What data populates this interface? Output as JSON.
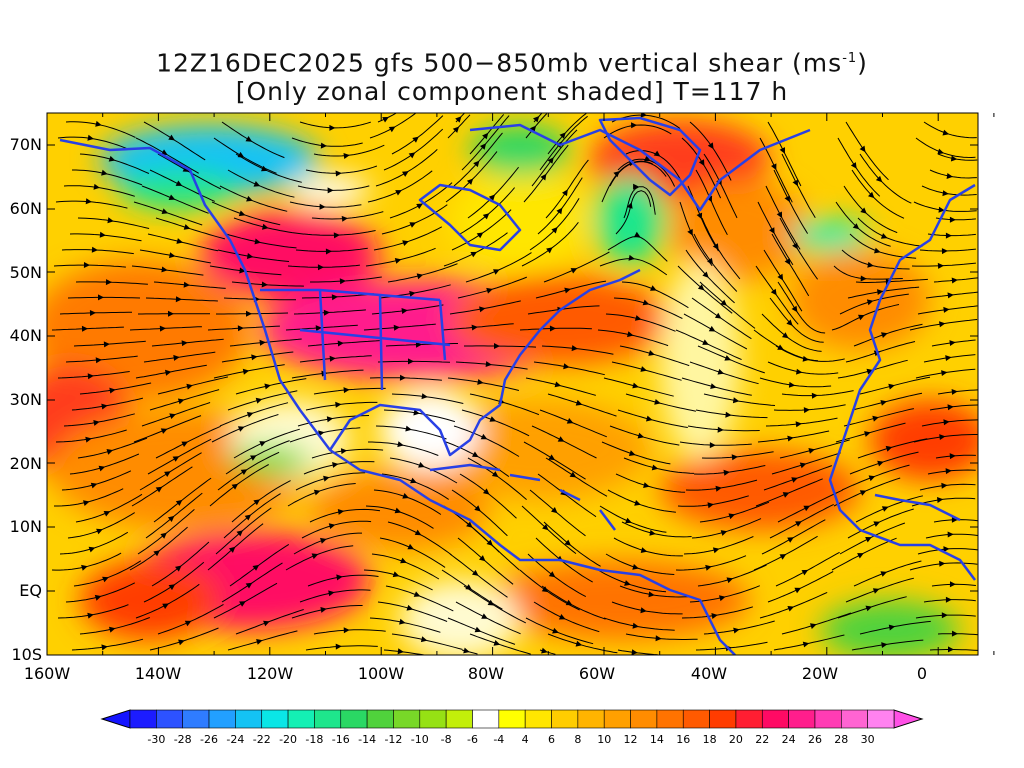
{
  "title": {
    "line1_prefix": "12Z16DEC2025 gfs 500−850mb vertical shear (ms",
    "line1_sup": "-1",
    "line1_suffix": ")",
    "line2": "[Only zonal component shaded] T=117 h"
  },
  "lat_labels": [
    "70N",
    "60N",
    "50N",
    "40N",
    "30N",
    "20N",
    "10N",
    "EQ",
    "10S"
  ],
  "lon_labels": [
    "160W",
    "140W",
    "120W",
    "100W",
    "80W",
    "60W",
    "40W",
    "20W",
    "0"
  ],
  "colorbar": {
    "labels": [
      "-30",
      "-28",
      "-26",
      "-24",
      "-22",
      "-20",
      "-18",
      "-16",
      "-14",
      "-12",
      "-10",
      "-8",
      "-6",
      "-4",
      "4",
      "6",
      "8",
      "10",
      "12",
      "14",
      "16",
      "18",
      "20",
      "22",
      "24",
      "26",
      "28",
      "30"
    ],
    "colors": [
      "#1c1cff",
      "#2d52ff",
      "#2f7cff",
      "#22a0ff",
      "#14c3f4",
      "#0ae6e6",
      "#14f0b4",
      "#1ee68c",
      "#2ad864",
      "#50d23c",
      "#78d828",
      "#96e114",
      "#c3ef0a",
      "#ffffff",
      "#ffff00",
      "#ffe600",
      "#ffcd00",
      "#ffb400",
      "#ffa000",
      "#ff8c00",
      "#ff7300",
      "#ff5a00",
      "#ff3c00",
      "#ff1e32",
      "#ff0a64",
      "#ff1e8c",
      "#ff3cb4",
      "#ff64d2",
      "#ff82f0"
    ],
    "under_color": "#1414ff",
    "over_color": "#ff50e6"
  },
  "colors": {
    "coastline": "#2840e6",
    "streamline": "#000000"
  }
}
